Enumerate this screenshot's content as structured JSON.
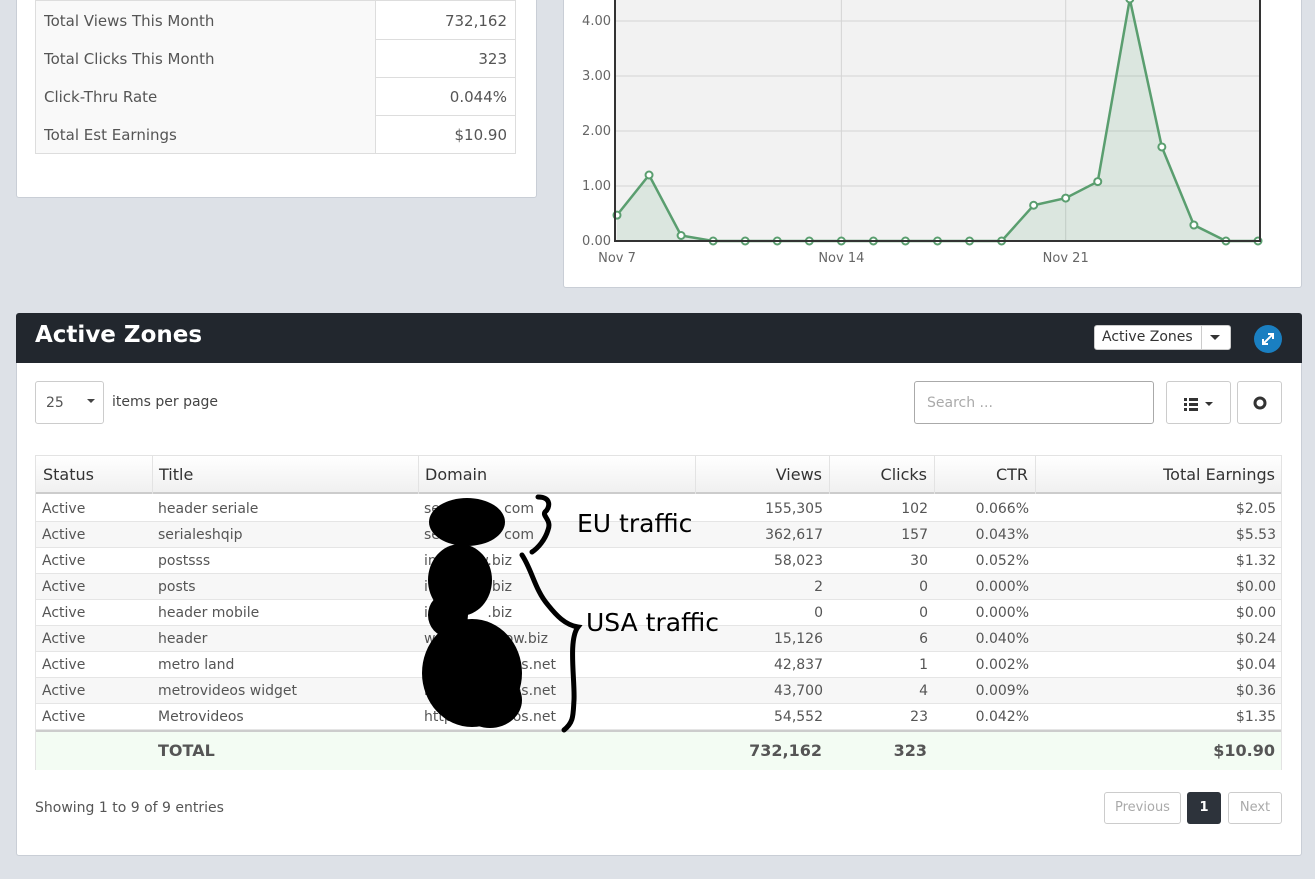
{
  "stats": {
    "rows": [
      [
        "Total Views This Month",
        "732,162"
      ],
      [
        "Total Clicks This Month",
        "323"
      ],
      [
        "Click-Thru Rate",
        "0.044%"
      ],
      [
        "Total Est Earnings",
        "$10.90"
      ]
    ]
  },
  "chart_data": {
    "type": "line",
    "categories": [
      "Nov 7",
      null,
      null,
      null,
      null,
      null,
      null,
      "Nov 14",
      null,
      null,
      null,
      null,
      null,
      null,
      "Nov 21",
      null,
      null,
      null,
      null,
      null,
      null
    ],
    "series": [
      {
        "color": "#5a9e6f",
        "values": [
          0.47,
          1.2,
          0.1,
          0,
          0,
          0,
          0,
          0,
          0,
          0,
          0,
          0,
          0,
          0.65,
          0.78,
          1.08,
          4.4,
          1.71,
          0.29,
          0,
          0
        ]
      }
    ],
    "ylim": [
      0,
      5
    ],
    "yticks": [
      {
        "value": 0,
        "label": "0.00"
      },
      {
        "value": 1,
        "label": "1.00"
      },
      {
        "value": 2,
        "label": "2.00"
      },
      {
        "value": 3,
        "label": "3.00"
      },
      {
        "value": 4,
        "label": "4.00"
      }
    ],
    "grid": true
  },
  "zones": {
    "title": "Active Zones",
    "dropdown": "Active Zones",
    "page_size": "25",
    "page_size_label": "items per page",
    "search_placeholder": "Search ...",
    "table": {
      "columns": [
        "Status",
        "Title",
        "Domain",
        "Views",
        "Clicks",
        "CTR",
        "Total Earnings"
      ],
      "rows": [
        [
          "Active",
          "header seriale",
          {
            "start": "se",
            "end": "com"
          },
          "155,305",
          "102",
          "0.066%",
          "$2.05"
        ],
        [
          "Active",
          "serialeshqip",
          {
            "start": "se",
            "end": "com"
          },
          "362,617",
          "157",
          "0.043%",
          "$5.53"
        ],
        [
          "Active",
          "postsss",
          {
            "start": "in",
            "end": "w.biz"
          },
          "58,023",
          "30",
          "0.052%",
          "$1.32"
        ],
        [
          "Active",
          "posts",
          {
            "start": "i",
            "end": ".biz"
          },
          "2",
          "0",
          "0.000%",
          "$0.00"
        ],
        [
          "Active",
          "header mobile",
          {
            "start": "ins",
            "end": ".biz"
          },
          "0",
          "0",
          "0.000%",
          "$0.00"
        ],
        [
          "Active",
          "header",
          {
            "start": "w",
            "end": "ow.biz"
          },
          "15,126",
          "6",
          "0.040%",
          "$0.24"
        ],
        [
          "Active",
          "metro land",
          {
            "start": "h",
            "end": "os.net"
          },
          "42,837",
          "1",
          "0.002%",
          "$0.04"
        ],
        [
          "Active",
          "metrovideos widget",
          {
            "start": "h",
            "end": "os.net"
          },
          "43,700",
          "4",
          "0.009%",
          "$0.36"
        ],
        [
          "Active",
          "Metrovideos",
          {
            "start": "http",
            "end": "os.net"
          },
          "54,552",
          "23",
          "0.042%",
          "$1.35"
        ]
      ],
      "total": {
        "label": "TOTAL",
        "views": "732,162",
        "clicks": "323",
        "earnings": "$10.90"
      }
    },
    "info": "Showing 1 to 9 of 9 entries",
    "pagination": [
      "Previous",
      "1",
      "Next"
    ]
  },
  "annotations": [
    "EU traffic",
    "USA traffic"
  ]
}
